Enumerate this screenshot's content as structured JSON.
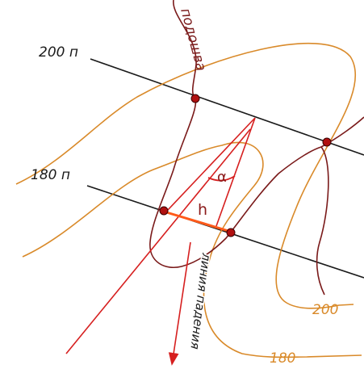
{
  "labels": {
    "strike_200": "200 п",
    "strike_180": "180 п",
    "contour_200": "200",
    "contour_180": "180",
    "podoshva": "подошва",
    "dip_line": "линия падения",
    "alpha": "α",
    "h": "h"
  },
  "colors": {
    "strike_line": "#1a1a1a",
    "contour": "#d98a2a",
    "contact": "#7a1a1a",
    "dip": "#d61f1f",
    "point": "#b01010",
    "h_segment": "#ff5a1a"
  }
}
